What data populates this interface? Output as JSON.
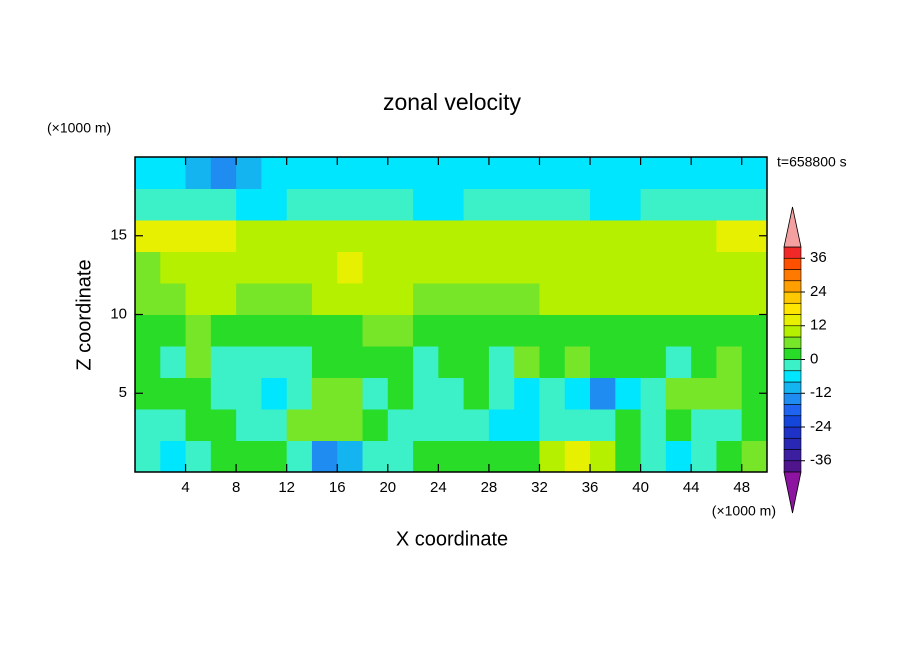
{
  "chart_data": {
    "type": "contour",
    "title": "zonal velocity",
    "xlabel": "X coordinate",
    "ylabel": "Z coordinate",
    "x_unit": "(×1000 m)",
    "y_unit": "(×1000 m)",
    "time_label": "t=658800 s",
    "xlim": [
      0,
      50
    ],
    "ylim": [
      0,
      20
    ],
    "xticks": [
      4,
      8,
      12,
      16,
      20,
      24,
      28,
      32,
      36,
      40,
      44,
      48
    ],
    "yticks": [
      5,
      10,
      15
    ],
    "x": [
      1,
      3,
      5,
      7,
      9,
      11,
      13,
      15,
      17,
      19,
      21,
      23,
      25,
      27,
      29,
      31,
      33,
      35,
      37,
      39,
      41,
      43,
      45,
      47,
      49
    ],
    "y": [
      1,
      3,
      5,
      7,
      9,
      11,
      13,
      15,
      17,
      19
    ],
    "z": [
      [
        -2,
        -6,
        -2,
        2,
        2,
        2,
        -2,
        -14,
        -10,
        -2,
        -2,
        2,
        2,
        2,
        2,
        2,
        10,
        13,
        10,
        2,
        -2,
        -6,
        -2,
        2,
        6
      ],
      [
        -2,
        -2,
        2,
        2,
        -2,
        -2,
        6,
        6,
        6,
        2,
        -2,
        -2,
        -2,
        -2,
        -6,
        -6,
        -2,
        -2,
        -2,
        2,
        -2,
        2,
        -2,
        -2,
        2
      ],
      [
        2,
        2,
        2,
        -2,
        -2,
        -6,
        -2,
        6,
        6,
        -2,
        2,
        -2,
        -2,
        2,
        -2,
        -6,
        -2,
        -6,
        -14,
        -6,
        -2,
        6,
        6,
        6,
        2
      ],
      [
        2,
        -2,
        6,
        -2,
        -2,
        -2,
        -2,
        2,
        2,
        2,
        2,
        -2,
        2,
        2,
        -2,
        6,
        2,
        6,
        2,
        2,
        2,
        -2,
        2,
        6,
        2
      ],
      [
        2,
        2,
        6,
        2,
        2,
        2,
        2,
        2,
        2,
        6,
        6,
        2,
        2,
        2,
        2,
        2,
        2,
        2,
        2,
        2,
        2,
        2,
        2,
        2,
        2
      ],
      [
        6,
        6,
        9,
        9,
        6,
        6,
        6,
        9,
        9,
        9,
        9,
        6,
        6,
        6,
        6,
        6,
        9,
        9,
        9,
        9,
        9,
        9,
        9,
        9,
        9
      ],
      [
        6,
        9,
        9,
        9,
        9,
        9,
        9,
        9,
        13,
        9,
        9,
        9,
        9,
        9,
        9,
        9,
        9,
        9,
        9,
        9,
        9,
        9,
        9,
        9,
        9
      ],
      [
        13,
        13,
        13,
        13,
        10,
        10,
        10,
        10,
        10,
        10,
        10,
        10,
        10,
        10,
        10,
        10,
        10,
        10,
        10,
        10,
        10,
        10,
        10,
        13,
        13
      ],
      [
        -2,
        -2,
        -3,
        -3,
        -6,
        -6,
        -3,
        -2,
        -2,
        -2,
        -3,
        -6,
        -6,
        -3,
        -2,
        -2,
        -3,
        -3,
        -6,
        -6,
        -3,
        -3,
        -2,
        -2,
        -2
      ],
      [
        -6,
        -6,
        -10,
        -14,
        -10,
        -6,
        -6,
        -6,
        -6,
        -6,
        -6,
        -6,
        -6,
        -6,
        -6,
        -6,
        -6,
        -6,
        -6,
        -6,
        -6,
        -6,
        -6,
        -6,
        -6
      ]
    ],
    "levels": [
      -40,
      -36,
      -32,
      -28,
      -24,
      -20,
      -16,
      -12,
      -8,
      -4,
      0,
      4,
      8,
      12,
      16,
      20,
      24,
      28,
      32,
      36,
      40
    ],
    "colors": [
      "#50148c",
      "#3c1ea0",
      "#2828b4",
      "#1e32c8",
      "#1446dc",
      "#1e64f0",
      "#1e8cf0",
      "#14b4f0",
      "#00e6ff",
      "#3cf0c8",
      "#28dc28",
      "#78e628",
      "#b4f000",
      "#e6f000",
      "#ffe600",
      "#ffc800",
      "#ffa000",
      "#ff7800",
      "#ff5000",
      "#f02828"
    ],
    "under_color": "#8c14a0",
    "over_color": "#f4a0a0",
    "colorbar_ticks": [
      -36,
      -24,
      -12,
      0,
      12,
      24,
      36
    ]
  }
}
